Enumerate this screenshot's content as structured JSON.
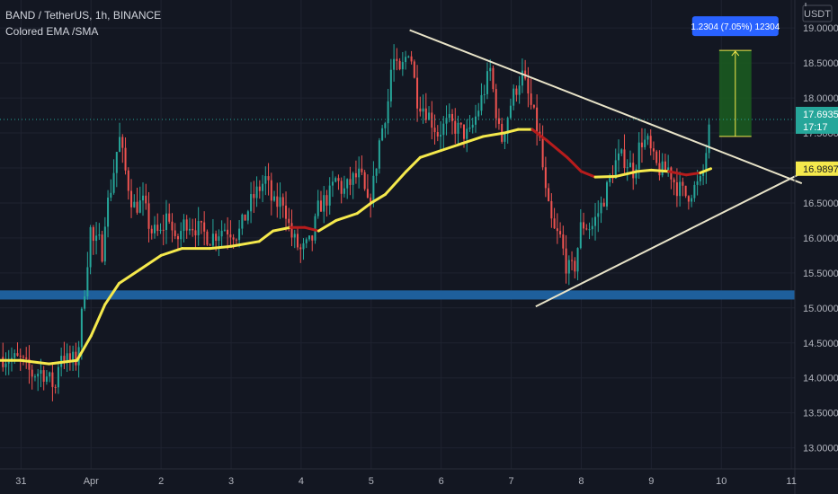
{
  "header": {
    "symbol_line": "BAND / TetherUS, 1h, BINANCE",
    "indicator_line": "Colored EMA /SMA"
  },
  "currency_badge": "USDT",
  "colors": {
    "background": "#131722",
    "grid": "#1f2330",
    "up_candle": "#26a69a",
    "down_candle": "#ef5350",
    "ma_up": "#f5e94c",
    "ma_down": "#b71c1c",
    "trendline": "#e8e3c8",
    "support_zone": "#1e5f9c",
    "target_box": "#1b5e20",
    "price_badge": "#26a69a",
    "ma_badge": "#f5e94c",
    "measure_badge": "#2962ff"
  },
  "chart_data": {
    "type": "candlestick",
    "pair": "BAND / TetherUS",
    "timeframe": "1h",
    "exchange": "BINANCE",
    "indicator": "Colored EMA /SMA",
    "y_axis": {
      "min": 12.7,
      "max": 19.4,
      "tick_labels": [
        "19.0000",
        "18.5000",
        "18.0000",
        "17.5000",
        "17.0000",
        "16.5000",
        "16.0000",
        "15.5000",
        "15.0000",
        "14.5000",
        "14.0000",
        "13.5000",
        "13.0000"
      ]
    },
    "x_axis": {
      "tick_labels": [
        {
          "label": "31",
          "day": 31.0
        },
        {
          "label": "Apr",
          "day": 32.0
        },
        {
          "label": "2",
          "day": 33.0
        },
        {
          "label": "3",
          "day": 34.0
        },
        {
          "label": "4",
          "day": 35.0
        },
        {
          "label": "5",
          "day": 36.0
        },
        {
          "label": "6",
          "day": 37.0
        },
        {
          "label": "7",
          "day": 38.0
        },
        {
          "label": "8",
          "day": 39.0
        },
        {
          "label": "9",
          "day": 40.0
        },
        {
          "label": "10",
          "day": 41.0
        },
        {
          "label": "11",
          "day": 42.0
        }
      ]
    },
    "price_path": [
      [
        30.7,
        14.3
      ],
      [
        31.0,
        14.25
      ],
      [
        31.15,
        14.05
      ],
      [
        31.3,
        14.1
      ],
      [
        31.5,
        13.85
      ],
      [
        31.55,
        14.4
      ],
      [
        31.65,
        14.25
      ],
      [
        31.8,
        14.25
      ],
      [
        31.9,
        15.2
      ],
      [
        32.0,
        16.2
      ],
      [
        32.05,
        15.8
      ],
      [
        32.1,
        16.05
      ],
      [
        32.15,
        15.7
      ],
      [
        32.2,
        16.3
      ],
      [
        32.3,
        16.8
      ],
      [
        32.4,
        17.45
      ],
      [
        32.5,
        16.9
      ],
      [
        32.6,
        16.45
      ],
      [
        32.75,
        16.5
      ],
      [
        32.85,
        16.1
      ],
      [
        33.0,
        16.05
      ],
      [
        33.1,
        16.4
      ],
      [
        33.2,
        15.9
      ],
      [
        33.35,
        16.25
      ],
      [
        33.5,
        16.15
      ],
      [
        33.7,
        16.0
      ],
      [
        33.9,
        16.15
      ],
      [
        34.1,
        16.05
      ],
      [
        34.3,
        16.55
      ],
      [
        34.5,
        16.85
      ],
      [
        34.6,
        16.45
      ],
      [
        34.75,
        16.55
      ],
      [
        34.85,
        16.05
      ],
      [
        35.0,
        15.8
      ],
      [
        35.15,
        15.95
      ],
      [
        35.25,
        16.45
      ],
      [
        35.4,
        16.6
      ],
      [
        35.5,
        16.85
      ],
      [
        35.6,
        16.65
      ],
      [
        35.75,
        16.85
      ],
      [
        35.85,
        16.9
      ],
      [
        35.95,
        16.45
      ],
      [
        36.05,
        16.85
      ],
      [
        36.1,
        17.3
      ],
      [
        36.25,
        18.0
      ],
      [
        36.3,
        18.6
      ],
      [
        36.4,
        18.3
      ],
      [
        36.55,
        18.75
      ],
      [
        36.65,
        18.0
      ],
      [
        36.8,
        17.8
      ],
      [
        36.95,
        17.5
      ],
      [
        37.1,
        17.65
      ],
      [
        37.25,
        17.55
      ],
      [
        37.4,
        17.45
      ],
      [
        37.55,
        17.9
      ],
      [
        37.7,
        18.4
      ],
      [
        37.85,
        17.35
      ],
      [
        38.0,
        17.95
      ],
      [
        38.15,
        18.35
      ],
      [
        38.25,
        18.0
      ],
      [
        38.4,
        17.45
      ],
      [
        38.5,
        16.55
      ],
      [
        38.6,
        16.1
      ],
      [
        38.7,
        16.0
      ],
      [
        38.8,
        15.55
      ],
      [
        38.9,
        15.55
      ],
      [
        39.0,
        16.2
      ],
      [
        39.15,
        16.15
      ],
      [
        39.3,
        16.5
      ],
      [
        39.4,
        16.8
      ],
      [
        39.5,
        17.1
      ],
      [
        39.6,
        17.15
      ],
      [
        39.75,
        16.95
      ],
      [
        39.85,
        17.4
      ],
      [
        39.95,
        17.35
      ],
      [
        40.05,
        17.05
      ],
      [
        40.15,
        16.95
      ],
      [
        40.25,
        17.0
      ],
      [
        40.35,
        16.75
      ],
      [
        40.5,
        16.6
      ],
      [
        40.6,
        16.7
      ],
      [
        40.72,
        16.8
      ],
      [
        40.77,
        17.15
      ],
      [
        40.85,
        17.69
      ]
    ],
    "moving_average": [
      [
        30.7,
        14.25
      ],
      [
        31.0,
        14.25
      ],
      [
        31.4,
        14.2
      ],
      [
        31.8,
        14.25
      ],
      [
        32.0,
        14.6
      ],
      [
        32.2,
        15.05
      ],
      [
        32.4,
        15.35
      ],
      [
        32.7,
        15.55
      ],
      [
        33.0,
        15.75
      ],
      [
        33.3,
        15.85
      ],
      [
        33.7,
        15.85
      ],
      [
        34.0,
        15.88
      ],
      [
        34.4,
        15.95
      ],
      [
        34.6,
        16.1
      ],
      [
        34.85,
        16.15
      ],
      [
        35.05,
        16.15
      ],
      [
        35.25,
        16.1
      ],
      [
        35.5,
        16.25
      ],
      [
        35.8,
        16.35
      ],
      [
        36.0,
        16.5
      ],
      [
        36.2,
        16.62
      ],
      [
        36.5,
        16.95
      ],
      [
        36.7,
        17.15
      ],
      [
        37.0,
        17.25
      ],
      [
        37.3,
        17.35
      ],
      [
        37.6,
        17.45
      ],
      [
        37.9,
        17.5
      ],
      [
        38.1,
        17.55
      ],
      [
        38.3,
        17.55
      ],
      [
        38.5,
        17.4
      ],
      [
        38.8,
        17.15
      ],
      [
        39.0,
        16.95
      ],
      [
        39.2,
        16.87
      ],
      [
        39.5,
        16.88
      ],
      [
        39.8,
        16.95
      ],
      [
        40.0,
        16.97
      ],
      [
        40.25,
        16.95
      ],
      [
        40.5,
        16.9
      ],
      [
        40.7,
        16.93
      ],
      [
        40.85,
        16.99
      ]
    ],
    "ma_down_segments": [
      [
        34.85,
        35.25
      ],
      [
        38.3,
        39.2
      ],
      [
        40.2,
        40.6
      ]
    ],
    "trendlines": [
      {
        "from": [
          36.55,
          18.97
        ],
        "to": [
          42.15,
          16.78
        ]
      },
      {
        "from": [
          38.35,
          15.02
        ],
        "to": [
          42.25,
          16.98
        ]
      }
    ],
    "support_zone": {
      "low": 15.12,
      "high": 15.25
    },
    "target_box": {
      "x_from": 40.97,
      "x_to": 41.43,
      "y_from": 17.45,
      "y_to": 18.68
    },
    "measure_label": "1.2304 (7.05%) 12304",
    "last_price": {
      "value": "17.6935",
      "countdown": "17:17"
    },
    "ma_value": "16.9897"
  }
}
